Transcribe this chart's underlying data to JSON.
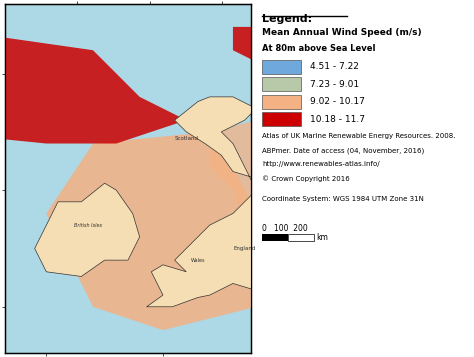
{
  "title": "Mean Annual Wind Speed (m/s)",
  "subtitle": "At 80m above Sea Level",
  "legend_title": "Legend:",
  "legend_entries": [
    {
      "label": "4.51 - 7.22",
      "color": "#6fa8dc"
    },
    {
      "label": "7.23 - 9.01",
      "color": "#b7c9a8"
    },
    {
      "label": "9.02 - 10.17",
      "color": "#f4b183"
    },
    {
      "label": "10.18 - 11.7",
      "color": "#cc0000"
    }
  ],
  "citation_lines": [
    "Atlas of UK Marine Renewable Energy Resources. 2008.",
    "ABPmer. Date of access (04, November, 2016)",
    "http://www.renewables-atlas.info/",
    "© Crown Copyright 2016"
  ],
  "coord_system": "Coordinate System: WGS 1984 UTM Zone 31N",
  "scale_label": "0   100  200",
  "scale_unit": "km",
  "map_bg_color": "#add8e6",
  "land_color": "#f5deb3",
  "fig_bg_color": "#ffffff",
  "border_color": "#000000"
}
